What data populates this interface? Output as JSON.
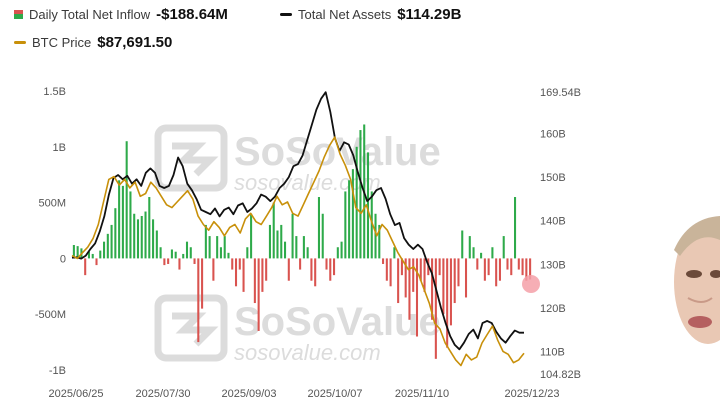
{
  "legend": {
    "inflow_label": "Daily Total Net Inflow",
    "inflow_value": "-$188.64M",
    "assets_label": "Total Net Assets",
    "assets_value": "$114.29B",
    "btc_label": "BTC Price",
    "btc_value": "$87,691.50"
  },
  "watermark": {
    "brand": "SoSoValue",
    "url": "sosovalue.com"
  },
  "colors": {
    "inflow_pos": "#2eaa4a",
    "inflow_neg": "#d9534f",
    "assets": "#111111",
    "btc": "#c8900a"
  },
  "chart_data": {
    "type": "bar",
    "title": "",
    "xlabel": "",
    "ylabel": "",
    "x_ticks": [
      "2025/06/25",
      "2025/07/30",
      "2025/09/03",
      "2025/10/07",
      "2025/11/10",
      "2025/12/23"
    ],
    "y_left_ticks": [
      "1.5B",
      "1B",
      "500M",
      "0",
      "-500M",
      "-1B"
    ],
    "y_left_values": [
      1500,
      1000,
      500,
      0,
      -500,
      -1000
    ],
    "y_left_range": [
      -1000,
      1500
    ],
    "y_right_ticks": [
      "169.54B",
      "160B",
      "150B",
      "140B",
      "130B",
      "120B",
      "110B",
      "104.82B"
    ],
    "y_right_values": [
      169.54,
      160,
      150,
      140,
      130,
      120,
      110,
      104.82
    ],
    "y_right_range": [
      104.82,
      169.54
    ],
    "series": [
      {
        "name": "Daily Total Net Inflow",
        "unit": "M",
        "values": [
          120,
          110,
          90,
          -150,
          60,
          40,
          -60,
          70,
          150,
          220,
          300,
          450,
          700,
          650,
          1050,
          600,
          400,
          350,
          380,
          420,
          550,
          350,
          250,
          100,
          -60,
          -50,
          80,
          60,
          -100,
          40,
          150,
          100,
          -50,
          -750,
          -450,
          300,
          200,
          -200,
          200,
          100,
          200,
          50,
          -100,
          -250,
          -100,
          -300,
          100,
          400,
          -400,
          -650,
          -300,
          -200,
          300,
          500,
          250,
          300,
          150,
          -200,
          400,
          200,
          -100,
          200,
          100,
          -200,
          -250,
          550,
          400,
          -100,
          -200,
          -150,
          100,
          150,
          600,
          700,
          800,
          1000,
          1150,
          1200,
          950,
          600,
          400,
          300,
          -50,
          -200,
          -250,
          100,
          -400,
          -150,
          -350,
          -550,
          -300,
          -700,
          -200,
          -300,
          -150,
          -550,
          -900,
          -150,
          -500,
          -800,
          -600,
          -400,
          -250,
          250,
          -350,
          200,
          100,
          -100,
          50,
          -200,
          -150,
          100,
          -250,
          -200,
          200,
          -100,
          -150,
          550,
          -100,
          -150,
          -200,
          -188.64
        ]
      },
      {
        "name": "Total Net Assets",
        "unit": "B",
        "values": [
          131.5,
          131.6,
          131.3,
          132.0,
          133.5,
          134.8,
          137.5,
          141.0,
          146.0,
          149.8,
          150.5,
          149.5,
          150.3,
          148.5,
          149.5,
          148.0,
          151.0,
          152.0,
          151.0,
          148.0,
          147.5,
          148.0,
          150.5,
          154.5,
          152.5,
          148.5,
          147.0,
          145.0,
          142.5,
          142.0,
          141.5,
          142.8,
          141.0,
          142.5,
          143.0,
          141.5,
          143.5,
          144.0,
          142.0,
          142.8,
          144.0,
          146.0,
          145.5,
          144.5,
          145.5,
          147.5,
          148.5,
          150.0,
          152.5,
          153.0,
          155.0,
          158.5,
          162.0,
          165.5,
          168.0,
          169.5,
          165.0,
          159.0,
          156.0,
          158.0,
          157.5,
          155.0,
          151.0,
          147.5,
          144.5,
          145.5,
          147.0,
          147.5,
          145.0,
          141.5,
          139.0,
          139.5,
          136.0,
          134.5,
          133.5,
          134.5,
          133.5,
          130.5,
          128.0,
          124.0,
          120.0,
          116.5,
          113.5,
          111.5,
          110.5,
          112.0,
          114.0,
          115.0,
          113.0,
          116.5,
          117.0,
          116.5,
          114.5,
          113.0,
          112.0,
          113.5,
          114.8,
          114.3,
          114.29
        ]
      },
      {
        "name": "BTC Price",
        "unit": "",
        "values": [
          105000,
          104500,
          105500,
          106500,
          108000,
          110500,
          114500,
          118500,
          119000,
          117500,
          118500,
          117000,
          118000,
          115500,
          116000,
          118000,
          117000,
          115500,
          114000,
          113500,
          114500,
          115500,
          116500,
          115000,
          112000,
          110500,
          109500,
          111000,
          110000,
          108500,
          110000,
          110500,
          109000,
          111500,
          112500,
          111000,
          110500,
          112000,
          113500,
          115500,
          114000,
          114500,
          112500,
          112000,
          114000,
          116000,
          118000,
          120000,
          122500,
          124500,
          126000,
          123000,
          121000,
          118500,
          113500,
          112500,
          114000,
          111000,
          108500,
          110500,
          109500,
          107500,
          105500,
          104000,
          102500,
          103000,
          101500,
          99000,
          96500,
          93000,
          92000,
          89500,
          88000,
          86500,
          85500,
          87500,
          86500,
          87000,
          89500,
          91000,
          92500,
          90000,
          88000,
          87500,
          86000,
          86500,
          87691.5
        ]
      }
    ]
  }
}
